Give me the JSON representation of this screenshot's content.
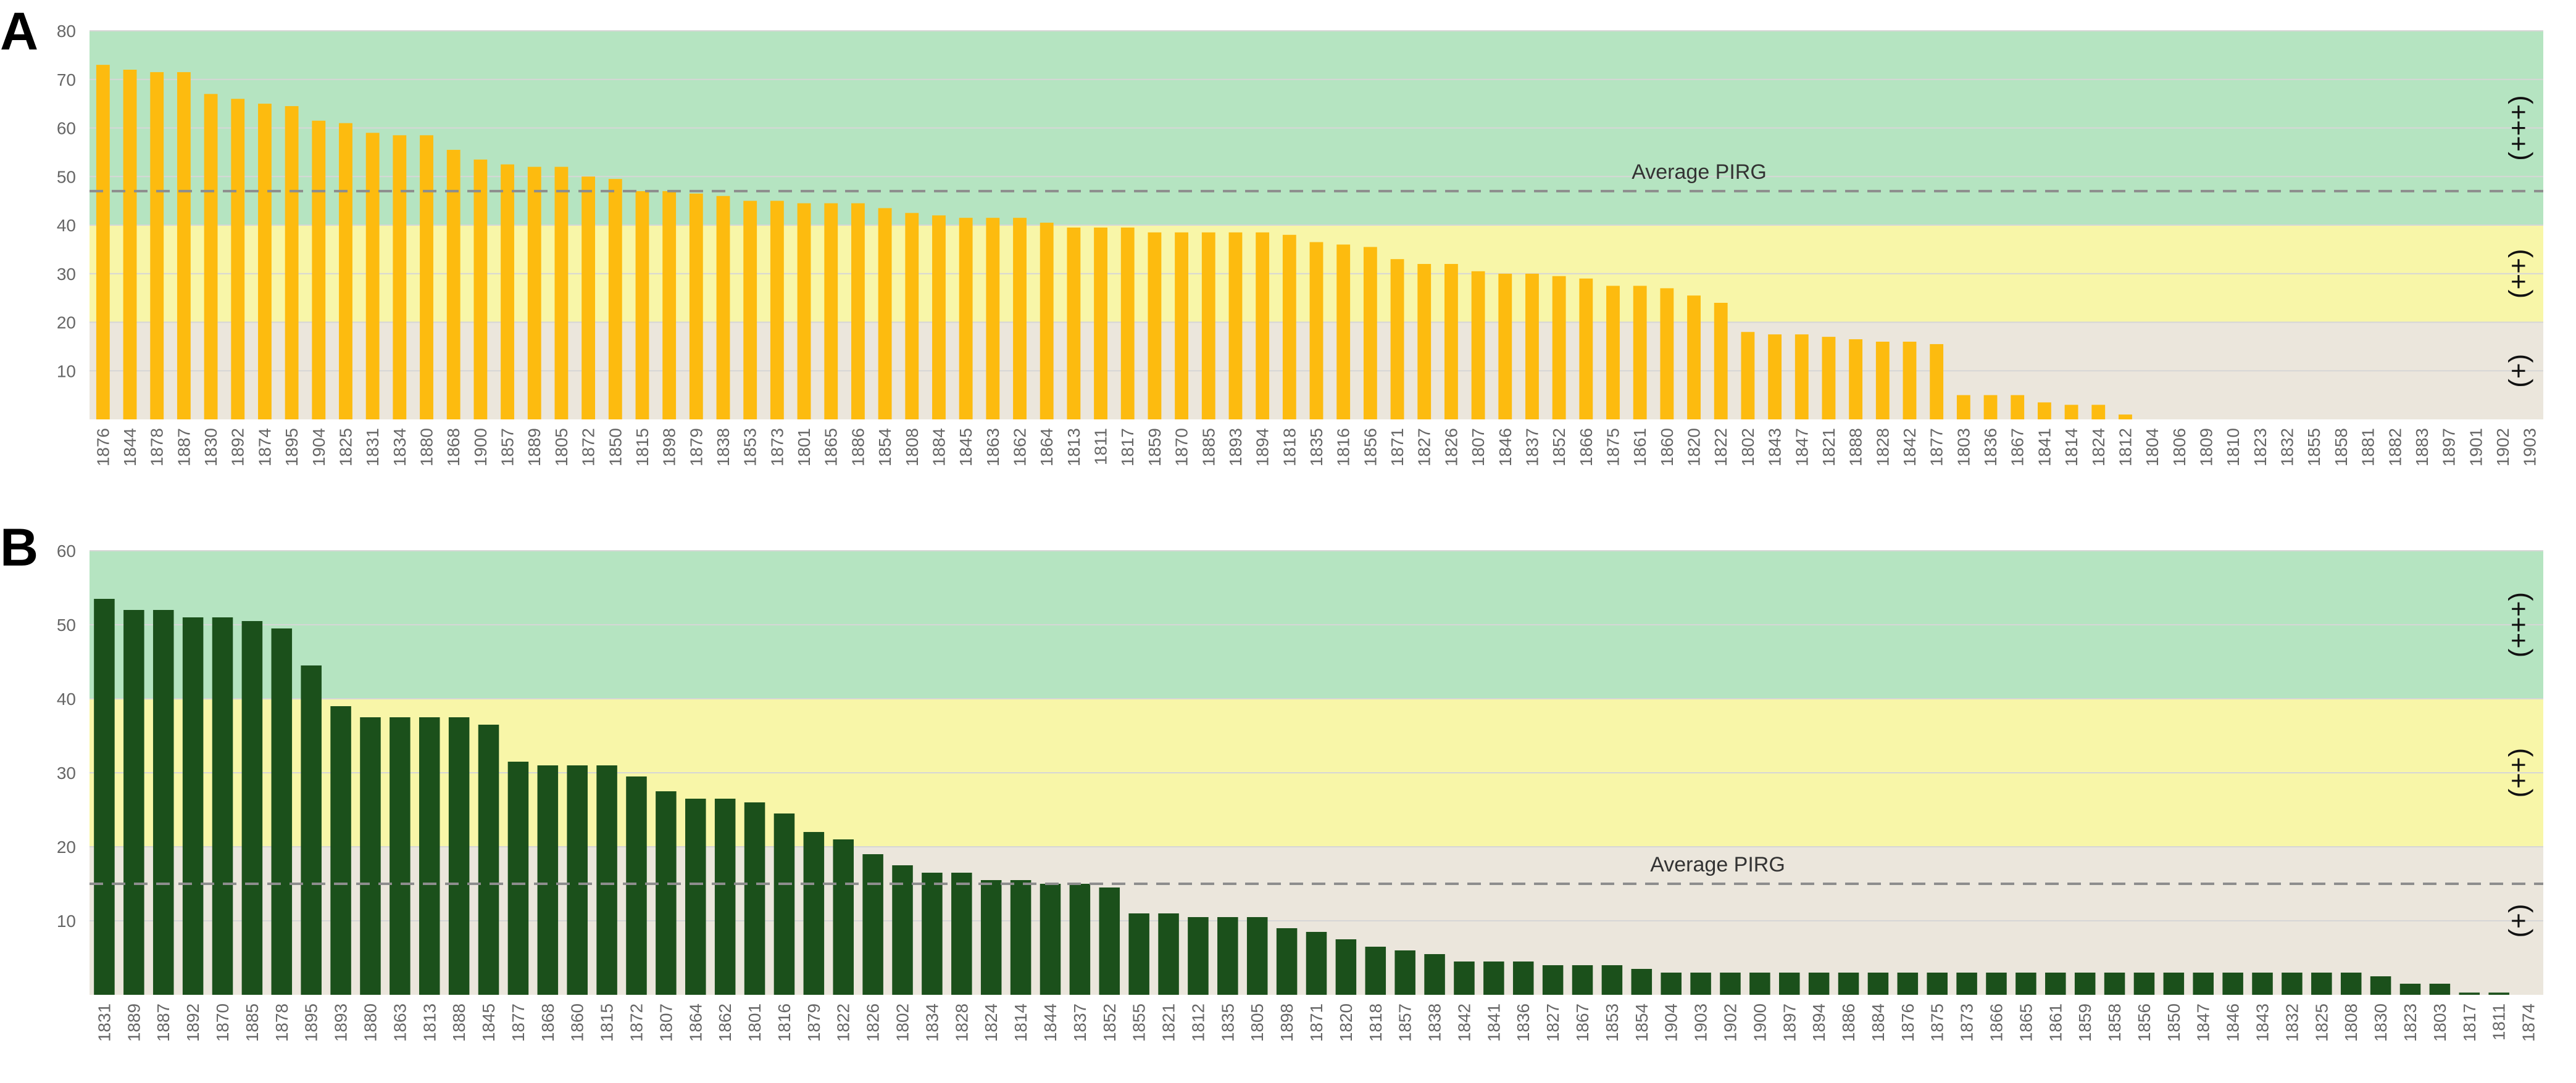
{
  "colors": {
    "band_high": "#b5e4c1",
    "band_mid": "#f8f6a8",
    "band_low": "#ebe6dc",
    "bar_a": "#fdbb0f",
    "bar_b": "#1b501b",
    "avg_line": "#8d8d8d",
    "grid": "#d6d6d6",
    "tick_text": "#666666"
  },
  "chart_data": [
    {
      "panel_label": "A",
      "type": "bar",
      "ylim": [
        0,
        80
      ],
      "yticks": [
        "10",
        "20",
        "30",
        "40",
        "50",
        "60",
        "70",
        "80"
      ],
      "average_label": "Average PIRG",
      "average_value": 47,
      "bands": [
        {
          "from": 40,
          "to": 80,
          "label": "(+++)"
        },
        {
          "from": 20,
          "to": 40,
          "label": "(++)"
        },
        {
          "from": 0,
          "to": 20,
          "label": "(+)"
        }
      ],
      "categories": [
        "1876",
        "1844",
        "1878",
        "1887",
        "1830",
        "1892",
        "1874",
        "1895",
        "1904",
        "1825",
        "1831",
        "1834",
        "1880",
        "1868",
        "1900",
        "1857",
        "1889",
        "1805",
        "1872",
        "1850",
        "1815",
        "1898",
        "1879",
        "1838",
        "1853",
        "1873",
        "1801",
        "1865",
        "1886",
        "1854",
        "1808",
        "1884",
        "1845",
        "1863",
        "1862",
        "1864",
        "1813",
        "1811",
        "1817",
        "1859",
        "1870",
        "1885",
        "1893",
        "1894",
        "1818",
        "1835",
        "1816",
        "1856",
        "1871",
        "1827",
        "1826",
        "1807",
        "1846",
        "1837",
        "1852",
        "1866",
        "1875",
        "1861",
        "1860",
        "1820",
        "1822",
        "1802",
        "1843",
        "1847",
        "1821",
        "1888",
        "1828",
        "1842",
        "1877",
        "1803",
        "1836",
        "1867",
        "1841",
        "1814",
        "1824",
        "1812",
        "1804",
        "1806",
        "1809",
        "1810",
        "1823",
        "1832",
        "1855",
        "1858",
        "1881",
        "1882",
        "1883",
        "1897",
        "1901",
        "1902",
        "1903"
      ],
      "values": [
        73,
        72,
        71.5,
        71.5,
        67,
        66,
        65,
        64.5,
        61.5,
        61,
        59,
        58.5,
        58.5,
        55.5,
        53.5,
        52.5,
        52,
        52,
        50,
        49.5,
        47,
        47,
        46.5,
        46,
        45,
        45,
        44.5,
        44.5,
        44.5,
        43.5,
        42.5,
        42,
        41.5,
        41.5,
        41.5,
        40.5,
        39.5,
        39.5,
        39.5,
        38.5,
        38.5,
        38.5,
        38.5,
        38.5,
        38,
        36.5,
        36,
        35.5,
        33,
        32,
        32,
        30.5,
        30,
        30,
        29.5,
        29,
        27.5,
        27.5,
        27,
        25.5,
        24,
        18,
        17.5,
        17.5,
        17,
        16.5,
        16,
        16,
        15.5,
        5,
        5,
        5,
        3.5,
        3,
        3,
        1,
        0,
        0,
        0,
        0,
        0,
        0,
        0,
        0,
        0,
        0,
        0,
        0,
        0,
        0,
        0
      ]
    },
    {
      "panel_label": "B",
      "type": "bar",
      "ylim": [
        0,
        60
      ],
      "yticks": [
        "10",
        "20",
        "30",
        "40",
        "50",
        "60"
      ],
      "average_label": "Average PIRG",
      "average_value": 15,
      "bands": [
        {
          "from": 40,
          "to": 60,
          "label": "(+++)"
        },
        {
          "from": 20,
          "to": 40,
          "label": "(++)"
        },
        {
          "from": 0,
          "to": 20,
          "label": "(+)"
        }
      ],
      "categories": [
        "1831",
        "1889",
        "1887",
        "1892",
        "1870",
        "1885",
        "1878",
        "1895",
        "1893",
        "1880",
        "1863",
        "1813",
        "1888",
        "1845",
        "1877",
        "1868",
        "1860",
        "1815",
        "1872",
        "1807",
        "1864",
        "1862",
        "1801",
        "1816",
        "1879",
        "1822",
        "1826",
        "1802",
        "1834",
        "1828",
        "1824",
        "1814",
        "1844",
        "1837",
        "1852",
        "1855",
        "1821",
        "1812",
        "1835",
        "1805",
        "1898",
        "1871",
        "1820",
        "1818",
        "1857",
        "1838",
        "1842",
        "1841",
        "1836",
        "1827",
        "1867",
        "1853",
        "1854",
        "1904",
        "1903",
        "1902",
        "1900",
        "1897",
        "1894",
        "1886",
        "1884",
        "1876",
        "1875",
        "1873",
        "1866",
        "1865",
        "1861",
        "1859",
        "1858",
        "1856",
        "1850",
        "1847",
        "1846",
        "1843",
        "1832",
        "1825",
        "1808",
        "1830",
        "1823",
        "1803",
        "1817",
        "1811",
        "1874"
      ],
      "values": [
        53.5,
        52,
        52,
        51,
        51,
        50.5,
        49.5,
        44.5,
        39,
        37.5,
        37.5,
        37.5,
        37.5,
        36.5,
        31.5,
        31,
        31,
        31,
        29.5,
        27.5,
        26.5,
        26.5,
        26,
        24.5,
        22,
        21,
        19,
        17.5,
        16.5,
        16.5,
        15.5,
        15.5,
        15,
        15,
        14.5,
        11,
        11,
        10.5,
        10.5,
        10.5,
        9,
        8.5,
        7.5,
        6.5,
        6,
        5.5,
        4.5,
        4.5,
        4.5,
        4,
        4,
        4,
        3.5,
        3,
        3,
        3,
        3,
        3,
        3,
        3,
        3,
        3,
        3,
        3,
        3,
        3,
        3,
        3,
        3,
        3,
        3,
        3,
        3,
        3,
        3,
        3,
        3,
        2.5,
        1.5,
        1.5,
        0.3,
        0.3,
        0
      ]
    }
  ]
}
